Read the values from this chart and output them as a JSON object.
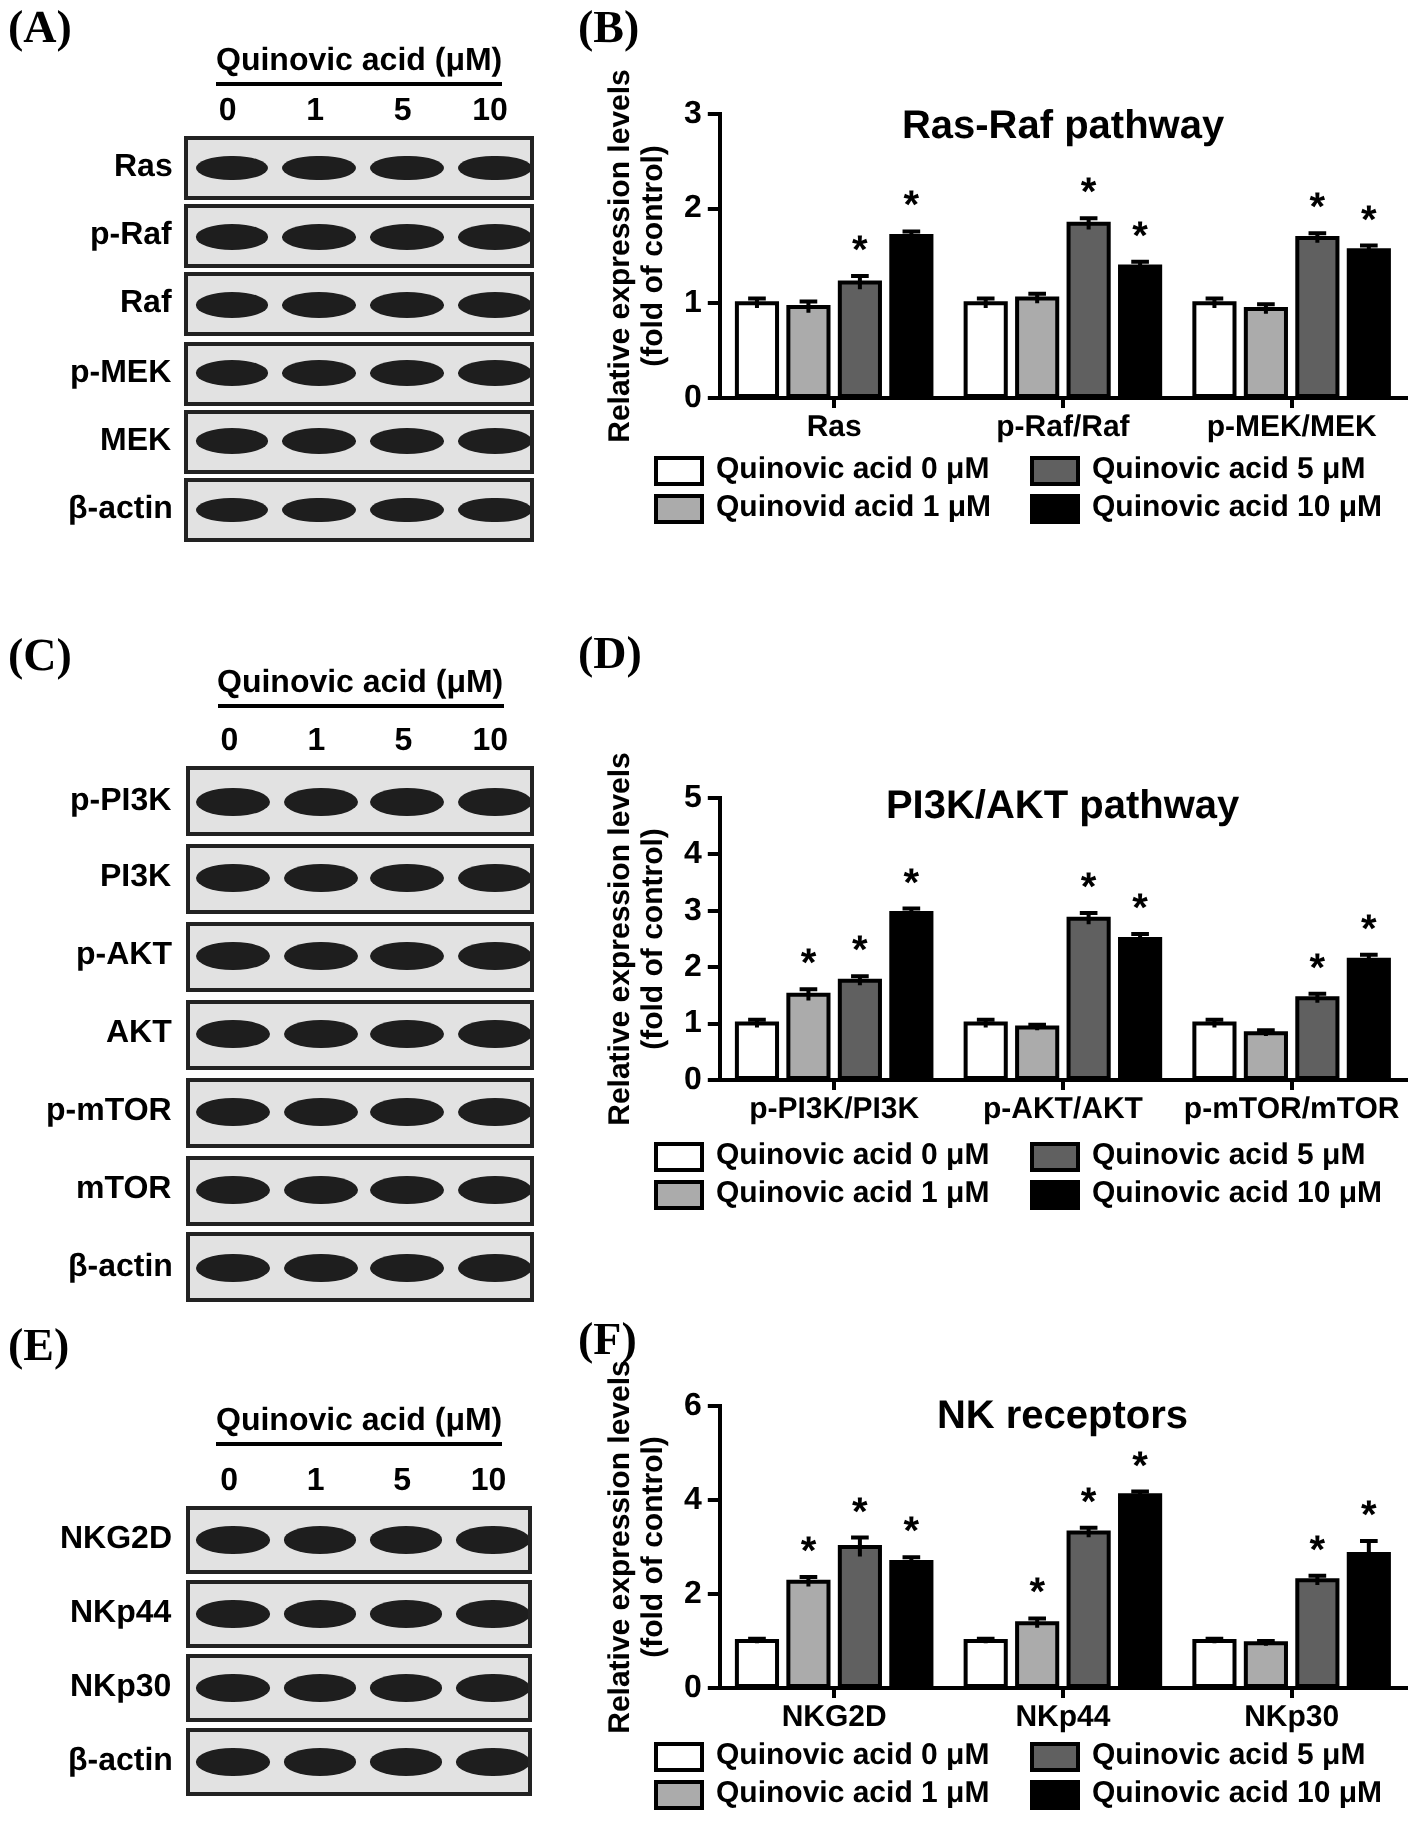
{
  "chart_data": [
    {
      "type": "other",
      "title": "Quinovic acid (μM)",
      "categories": [
        "0",
        "1",
        "5",
        "10"
      ],
      "y_categories": [
        "Ras",
        "p-Raf",
        "Raf",
        "p-MEK",
        "MEK",
        "β-actin"
      ],
      "annotations": [
        "(A)"
      ]
    },
    {
      "type": "bar",
      "title": "Ras-Raf pathway",
      "ylabel": "Relative expression levels\n(fold of control)",
      "categories": [
        "Ras",
        "p-Raf/Raf",
        "p-MEK/MEK"
      ],
      "ylim": [
        0,
        3
      ],
      "yticks": [
        0,
        1,
        2,
        3
      ],
      "legend": "bottom",
      "annotations": [
        "(B)"
      ],
      "series": [
        {
          "name": "Quinovic acid 0 μM",
          "color": "#ffffff",
          "values": [
            1,
            1,
            1
          ],
          "errors": [
            0.05,
            0.05,
            0.05
          ]
        },
        {
          "name": "Quinovid acid 1 μM",
          "color": "#ababab",
          "values": [
            0.96,
            1.05,
            0.94
          ],
          "errors": [
            0.06,
            0.05,
            0.05
          ]
        },
        {
          "name": "Quinovic acid 5 μM",
          "color": "#606060",
          "values": [
            1.22,
            1.84,
            1.69
          ],
          "errors": [
            0.07,
            0.06,
            0.05
          ],
          "value_labels": [
            "*",
            "*",
            "*"
          ]
        },
        {
          "name": "Quinovic acid 10 μM",
          "color": "#000000",
          "values": [
            1.71,
            1.39,
            1.56
          ],
          "errors": [
            0.05,
            0.05,
            0.05
          ],
          "value_labels": [
            "*",
            "*",
            "*"
          ]
        }
      ]
    },
    {
      "type": "other",
      "title": "Quinovic acid (μM)",
      "categories": [
        "0",
        "1",
        "5",
        "10"
      ],
      "y_categories": [
        "p-PI3K",
        "PI3K",
        "p-AKT",
        "AKT",
        "p-mTOR",
        "mTOR",
        "β-actin"
      ],
      "annotations": [
        "(C)"
      ]
    },
    {
      "type": "bar",
      "title": "PI3K/AKT pathway",
      "ylabel": "Relative expression levels\n(fold of control)",
      "categories": [
        "p-PI3K/PI3K",
        "p-AKT/AKT",
        "p-mTOR/mTOR"
      ],
      "ylim": [
        0,
        5
      ],
      "yticks": [
        0,
        1,
        2,
        3,
        4,
        5
      ],
      "legend": "bottom",
      "annotations": [
        "(D)"
      ],
      "series": [
        {
          "name": "Quinovic acid 0 μM",
          "color": "#ffffff",
          "values": [
            1,
            1,
            1
          ],
          "errors": [
            0.07,
            0.07,
            0.07
          ]
        },
        {
          "name": "Quinovic acid 1 μM",
          "color": "#ababab",
          "values": [
            1.51,
            0.93,
            0.83
          ],
          "errors": [
            0.1,
            0.05,
            0.05
          ],
          "value_labels": [
            "*",
            null,
            null
          ]
        },
        {
          "name": "Quinovic acid 5 μM",
          "color": "#606060",
          "values": [
            1.76,
            2.86,
            1.45
          ],
          "errors": [
            0.08,
            0.1,
            0.08
          ],
          "value_labels": [
            "*",
            "*",
            "*"
          ]
        },
        {
          "name": "Quinovic acid 10 μM",
          "color": "#000000",
          "values": [
            2.96,
            2.5,
            2.13
          ],
          "errors": [
            0.08,
            0.09,
            0.09
          ],
          "value_labels": [
            "*",
            "*",
            "*"
          ]
        }
      ]
    },
    {
      "type": "other",
      "title": "Quinovic acid (μM)",
      "categories": [
        "0",
        "1",
        "5",
        "10"
      ],
      "y_categories": [
        "NKG2D",
        "NKp44",
        "NKp30",
        "β-actin"
      ],
      "annotations": [
        "(E)"
      ]
    },
    {
      "type": "bar",
      "title": "NK receptors",
      "ylabel": "Relative expression levels\n(fold of control)",
      "categories": [
        "NKG2D",
        "NKp44",
        "NKp30"
      ],
      "ylim": [
        0,
        6
      ],
      "yticks": [
        0,
        2,
        4,
        6
      ],
      "legend": "bottom",
      "annotations": [
        "(F)"
      ],
      "series": [
        {
          "name": "Quinovic acid 0 μM",
          "color": "#ffffff",
          "values": [
            1,
            1,
            1
          ],
          "errors": [
            0.05,
            0.05,
            0.05
          ]
        },
        {
          "name": "Quinovic acid 1 μM",
          "color": "#ababab",
          "values": [
            2.26,
            1.38,
            0.95
          ],
          "errors": [
            0.1,
            0.1,
            0.05
          ],
          "value_labels": [
            "*",
            "*",
            null
          ]
        },
        {
          "name": "Quinovic acid 5 μM",
          "color": "#606060",
          "values": [
            3.0,
            3.31,
            2.29
          ],
          "errors": [
            0.2,
            0.1,
            0.1
          ],
          "value_labels": [
            "*",
            "*",
            "*"
          ]
        },
        {
          "name": "Quinovic acid 10 μM",
          "color": "#000000",
          "values": [
            2.68,
            4.1,
            2.85
          ],
          "errors": [
            0.1,
            0.08,
            0.28
          ],
          "value_labels": [
            "*",
            "*",
            "*"
          ]
        }
      ]
    }
  ]
}
